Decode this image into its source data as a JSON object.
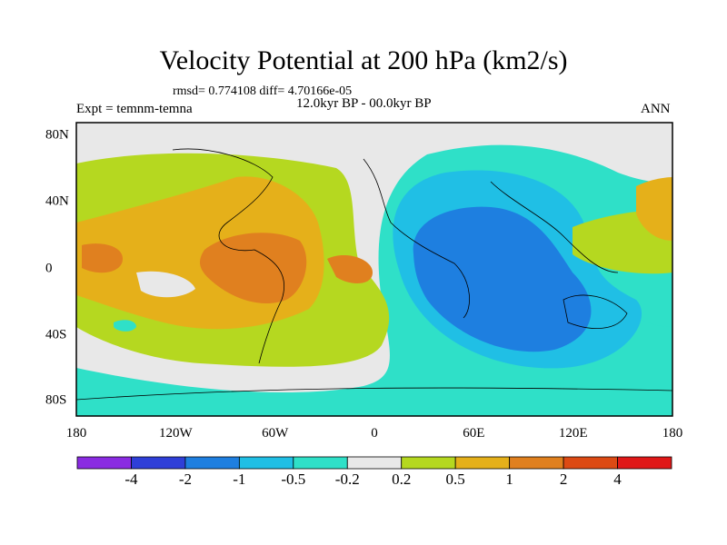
{
  "title": "Velocity Potential at 200 hPa (km2/s)",
  "stats": "rmsd= 0.774108 diff= 4.70166e-05",
  "period": "12.0kyr BP - 00.0kyr BP",
  "experiment": "Expt = temnm-temna",
  "season": "ANN",
  "map": {
    "lat_ticks": [
      "80N",
      "40N",
      "0",
      "40S",
      "80S"
    ],
    "lon_ticks": [
      "180",
      "120W",
      "60W",
      "0",
      "60E",
      "120E",
      "180"
    ]
  },
  "colorbar": {
    "colors": [
      "#8a2be2",
      "#2f3fd8",
      "#1e7fe0",
      "#20bfe5",
      "#2fe0c8",
      "#e8e8e8",
      "#b5d820",
      "#e5b01a",
      "#e0801f",
      "#dc4a14",
      "#e01818"
    ],
    "labels": [
      "-4",
      "-2",
      "-1",
      "-0.5",
      "-0.2",
      "0.2",
      "0.5",
      "1",
      "2",
      "4"
    ]
  }
}
